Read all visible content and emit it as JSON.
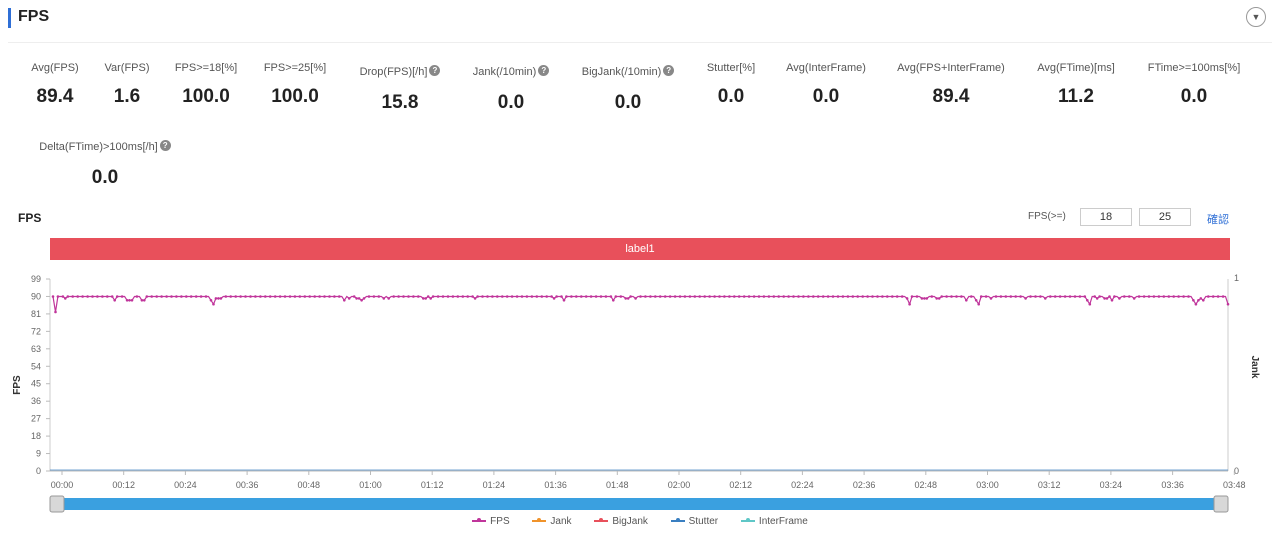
{
  "header": {
    "title": "FPS"
  },
  "metrics": [
    {
      "label": "Avg(FPS)",
      "value": "89.4",
      "help": false
    },
    {
      "label": "Var(FPS)",
      "value": "1.6",
      "help": false
    },
    {
      "label": "FPS>=18[%]",
      "value": "100.0",
      "help": false
    },
    {
      "label": "FPS>=25[%]",
      "value": "100.0",
      "help": false
    },
    {
      "label": "Drop(FPS)[/h]",
      "value": "15.8",
      "help": true
    },
    {
      "label": "Jank(/10min)",
      "value": "0.0",
      "help": true
    },
    {
      "label": "BigJank(/10min)",
      "value": "0.0",
      "help": true
    },
    {
      "label": "Stutter[%]",
      "value": "0.0",
      "help": false
    },
    {
      "label": "Avg(InterFrame)",
      "value": "0.0",
      "help": false
    },
    {
      "label": "Avg(FPS+InterFrame)",
      "value": "89.4",
      "help": false
    },
    {
      "label": "Avg(FTime)[ms]",
      "value": "11.2",
      "help": false
    },
    {
      "label": "FTime>=100ms[%]",
      "value": "0.0",
      "help": false
    },
    {
      "label": "Delta(FTime)>100ms[/h]",
      "value": "0.0",
      "help": true
    }
  ],
  "chart_header": {
    "title": "FPS",
    "threshold_label": "FPS(>=)",
    "threshold_1": "18",
    "threshold_2": "25",
    "confirm_label": "確認"
  },
  "label_bar": "label1",
  "colors": {
    "fps": "#c0359b",
    "jank": "#f0932b",
    "bigjank": "#e8505b",
    "stutter": "#3a7fc1",
    "interframe": "#5fc7c7",
    "label_bar": "#e8505b",
    "slider": "#3aa0e0",
    "accent": "#2f6fd6"
  },
  "chart_data": {
    "type": "line",
    "ylabel": "FPS",
    "y2label": "Jank",
    "ylim": [
      0,
      99
    ],
    "yticks": [
      0,
      9,
      18,
      27,
      36,
      45,
      54,
      63,
      72,
      81,
      90,
      99
    ],
    "y2lim": [
      0,
      1
    ],
    "y2ticks": [
      0,
      1
    ],
    "xlim_seconds": [
      0,
      168
    ],
    "xtick_labels": [
      "00:00",
      "00:12",
      "00:24",
      "00:36",
      "00:48",
      "01:00",
      "01:12",
      "01:24",
      "01:36",
      "01:48",
      "02:00",
      "02:12",
      "02:24",
      "02:36",
      "02:48",
      "03:00",
      "03:12",
      "03:24",
      "03:36",
      "03:48"
    ],
    "legend": [
      "FPS",
      "Jank",
      "BigJank",
      "Stutter",
      "InterFrame"
    ],
    "legend_position": "bottom",
    "series": [
      {
        "name": "FPS",
        "values": [
          90,
          82,
          90,
          90,
          90,
          89,
          90,
          90,
          90,
          90,
          90,
          90,
          90,
          90,
          90,
          90,
          90,
          90,
          90,
          90,
          90,
          90,
          90,
          90,
          90,
          88,
          90,
          90,
          90,
          90,
          88,
          88,
          88,
          90,
          90,
          90,
          88,
          88,
          90,
          90,
          90,
          90,
          90,
          90,
          90,
          90,
          90,
          90,
          90,
          90,
          90,
          90,
          90,
          90,
          90,
          90,
          90,
          90,
          90,
          90,
          90,
          90,
          90,
          90,
          88,
          86,
          89,
          89,
          89,
          90,
          90,
          90,
          90,
          90,
          90,
          90,
          90,
          90,
          90,
          90,
          90,
          90,
          90,
          90,
          90,
          90,
          90,
          90,
          90,
          90,
          90,
          90,
          90,
          90,
          90,
          90,
          90,
          90,
          90,
          90,
          90,
          90,
          90,
          90,
          90,
          90,
          90,
          90,
          90,
          90,
          90,
          90,
          90,
          90,
          90,
          90,
          90,
          90,
          88,
          90,
          89,
          90,
          90,
          89,
          89,
          88,
          89,
          90,
          90,
          90,
          90,
          90,
          90,
          90,
          89,
          90,
          89,
          90,
          90,
          90,
          90,
          90,
          90,
          90,
          90,
          90,
          90,
          90,
          90,
          90,
          89,
          89,
          90,
          89,
          90,
          90,
          90,
          90,
          90,
          90,
          90,
          90,
          90,
          90,
          90,
          90,
          90,
          90,
          90,
          90,
          90,
          89,
          90,
          90,
          90,
          90,
          90,
          90,
          90,
          90,
          90,
          90,
          90,
          90,
          90,
          90,
          90,
          90,
          90,
          90,
          90,
          90,
          90,
          90,
          90,
          90,
          90,
          90,
          90,
          90,
          90,
          90,
          90,
          89,
          90,
          90,
          90,
          88,
          90,
          90,
          90,
          90,
          90,
          90,
          90,
          90,
          90,
          90,
          90,
          90,
          90,
          90,
          90,
          90,
          90,
          90,
          90,
          88,
          90,
          90,
          90,
          90,
          89,
          89,
          90,
          90,
          89,
          90,
          90,
          90,
          90,
          90,
          90,
          90,
          90,
          90,
          90,
          90,
          90,
          90,
          90,
          90,
          90,
          90,
          90,
          90,
          90,
          90,
          90,
          90,
          90,
          90,
          90,
          90,
          90,
          90,
          90,
          90,
          90,
          90,
          90,
          90,
          90,
          90,
          90,
          90,
          90,
          90,
          90,
          90,
          90,
          90,
          90,
          90,
          90,
          90,
          90,
          90,
          90,
          90,
          90,
          90,
          90,
          90,
          90,
          90,
          90,
          90,
          90,
          90,
          90,
          90,
          90,
          90,
          90,
          90,
          90,
          90,
          90,
          90,
          90,
          90,
          90,
          90,
          90,
          90,
          90,
          90,
          90,
          90,
          90,
          90,
          90,
          90,
          90,
          90,
          90,
          90,
          90,
          90,
          90,
          90,
          90,
          90,
          90,
          90,
          90,
          90,
          90,
          90,
          90,
          90,
          90,
          90,
          90,
          90,
          89,
          86,
          90,
          90,
          90,
          90,
          89,
          89,
          89,
          90,
          90,
          90,
          89,
          89,
          90,
          90,
          90,
          90,
          90,
          90,
          90,
          90,
          90,
          90,
          88,
          90,
          90,
          90,
          88,
          86,
          90,
          90,
          90,
          90,
          89,
          90,
          90,
          90,
          90,
          90,
          90,
          90,
          90,
          90,
          90,
          90,
          90,
          90,
          89,
          90,
          90,
          90,
          90,
          90,
          90,
          90,
          89,
          90,
          90,
          90,
          90,
          90,
          90,
          90,
          90,
          90,
          90,
          90,
          90,
          90,
          90,
          90,
          90,
          88,
          86,
          90,
          90,
          89,
          90,
          90,
          89,
          89,
          90,
          88,
          90,
          90,
          89,
          90,
          90,
          90,
          90,
          90,
          89,
          90,
          90,
          90,
          90,
          90,
          90,
          90,
          90,
          90,
          90,
          90,
          90,
          90,
          90,
          90,
          90,
          90,
          90,
          90,
          90,
          90,
          90,
          90,
          88,
          86,
          88,
          89,
          88,
          90,
          90,
          90,
          90,
          90,
          90,
          90,
          90,
          90,
          86
        ]
      },
      {
        "name": "Jank",
        "values": []
      },
      {
        "name": "BigJank",
        "values": []
      },
      {
        "name": "Stutter",
        "values": []
      },
      {
        "name": "InterFrame",
        "values": []
      }
    ],
    "grid": false
  }
}
